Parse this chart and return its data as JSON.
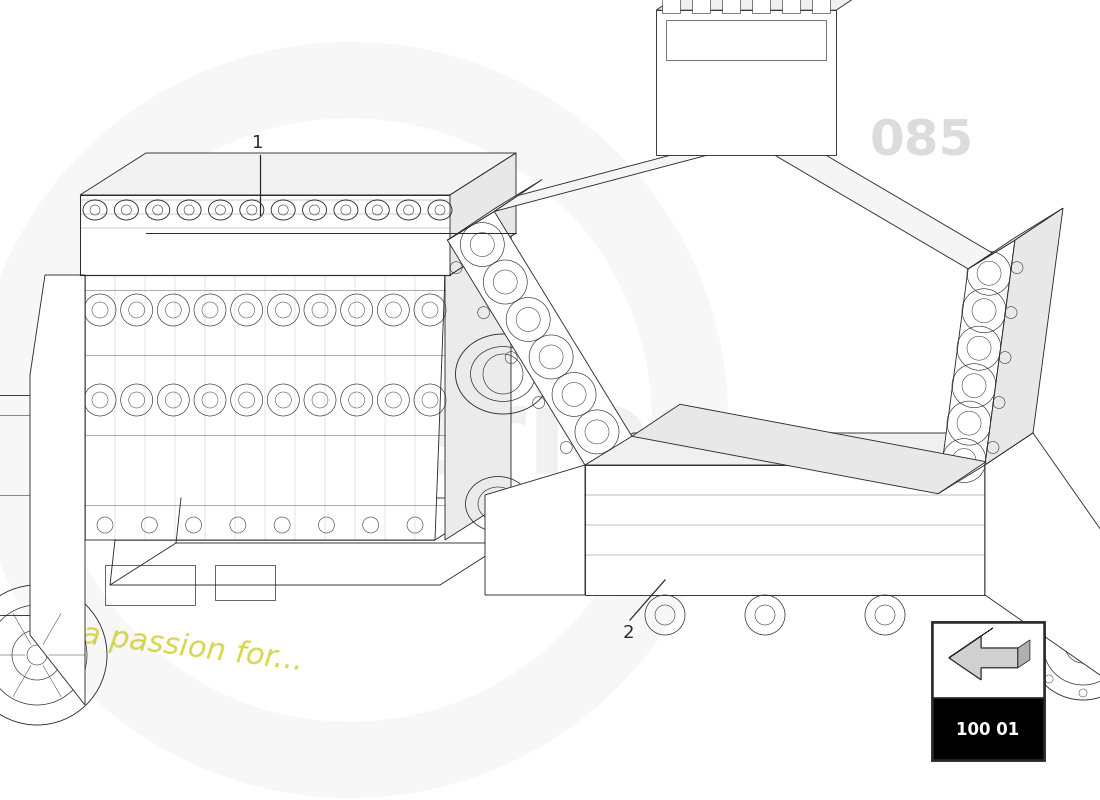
{
  "background_color": "#ffffff",
  "line_color": "#2a2a2a",
  "watermark_gray": "#d0d0d0",
  "watermark_yellow": "#d8d820",
  "part_number_text": "100 01",
  "label_1": "1",
  "label_2": "2",
  "figsize": [
    11.0,
    8.0
  ],
  "dpi": 100,
  "lw": 0.65
}
